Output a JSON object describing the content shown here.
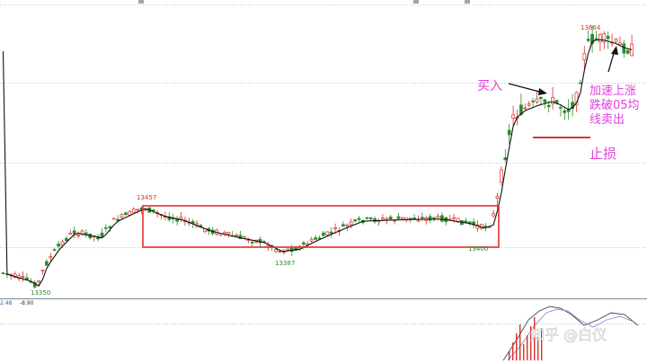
{
  "chart_data": {
    "type": "candlestick",
    "price_labels": {
      "low_start": "13350",
      "peak_left": "13457",
      "range_low": "13387",
      "range_end": "13400",
      "peak_right": "13664"
    },
    "indicator_readout": [
      "2.48",
      "-8.90"
    ],
    "annotations": {
      "buy": "买入",
      "stop_loss": "止损",
      "exit_line1": "加速上涨",
      "exit_line2": "跌破05均",
      "exit_line3": "线卖出"
    },
    "watermark": "知乎 @白仪",
    "colors": {
      "up": "#d9302c",
      "down": "#2f8a2f",
      "ma": "#111111",
      "grid": "#b8c4cc",
      "box": "#e03030",
      "note": "#e040e0",
      "arrow": "#111111"
    }
  }
}
